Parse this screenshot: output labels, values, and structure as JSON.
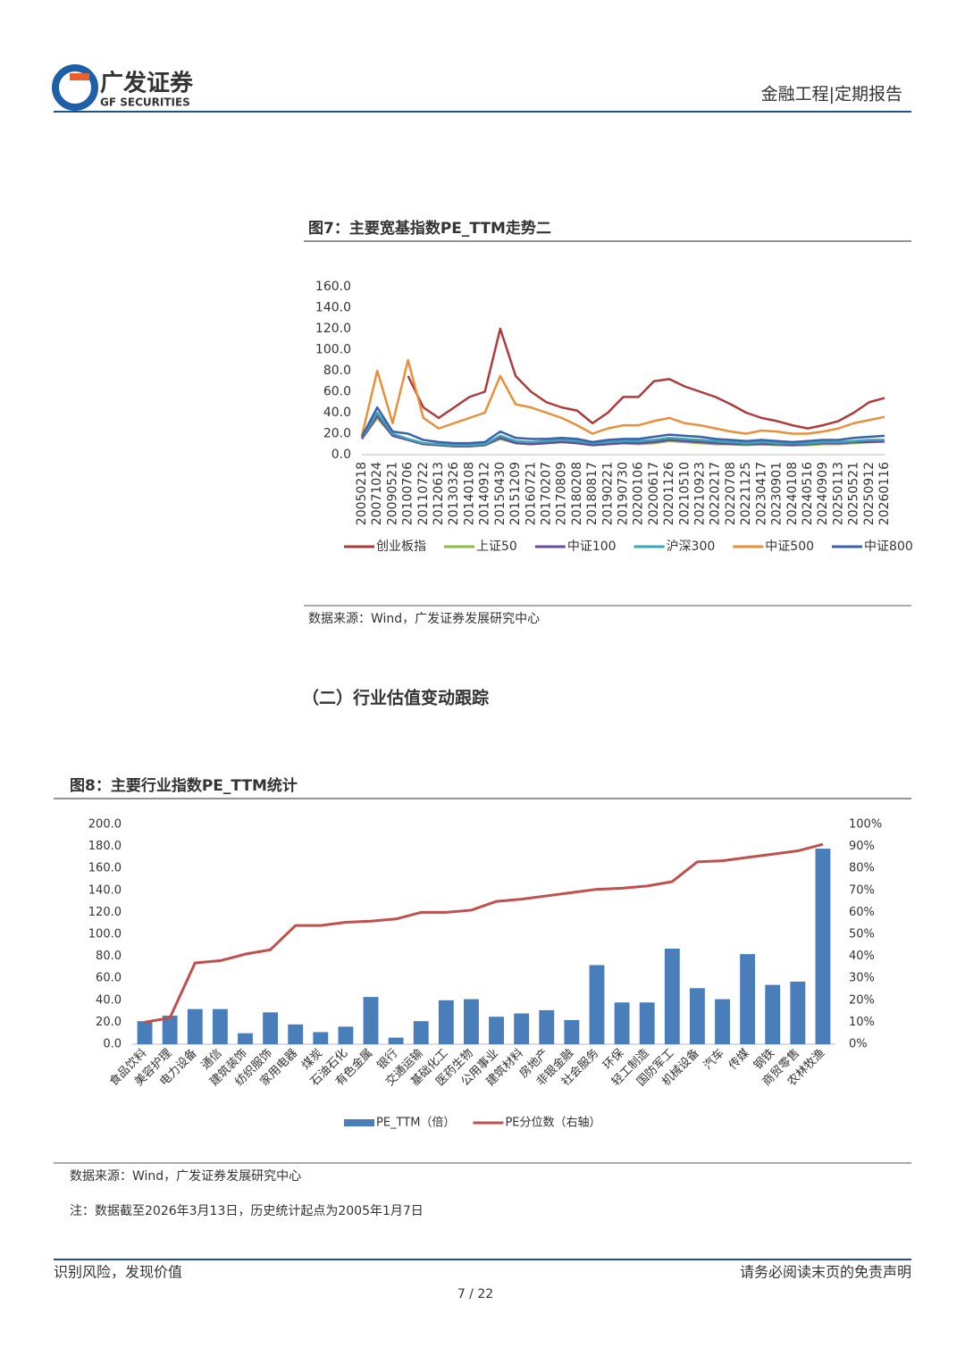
{
  "header": {
    "logo_cn": "广发证券",
    "logo_en": "GF SECURITIES",
    "report_type": "金融工程|定期报告"
  },
  "figures": [
    {
      "title": "图7：主要宽基指数PE_TTM走势二",
      "source": "数据来源：Wind，广发证券发展研究中心"
    },
    {
      "title": "图8：主要行业指数PE_TTM统计",
      "source": "数据来源：Wind，广发证券发展研究中心",
      "note": "注：数据截至2026年3月13日，历史统计起点为2005年1月7日"
    }
  ],
  "section_heading": "（二）行业估值变动跟踪",
  "footer": {
    "left": "识别风险，发现价值",
    "right": "请务必阅读末页的免责声明",
    "page": "7 / 22"
  },
  "chart_data": [
    {
      "type": "line",
      "categories": [
        "20050218",
        "20071024",
        "20090521",
        "20100706",
        "20110722",
        "20120613",
        "20130326",
        "20140108",
        "20140912",
        "20150430",
        "20151209",
        "20160721",
        "20170207",
        "20170809",
        "20180208",
        "20180817",
        "20190221",
        "20190730",
        "20200106",
        "20200617",
        "20201126",
        "20210510",
        "20210923",
        "20220217",
        "20220708",
        "20221125",
        "20230417",
        "20230901",
        "20240108",
        "20240516",
        "20240909",
        "20250113",
        "20250521",
        "20250912",
        "20260116"
      ],
      "ylim": [
        0,
        160
      ],
      "yticks": [
        {
          "value": 0,
          "label": "0.0"
        },
        {
          "value": 20,
          "label": "20.0"
        },
        {
          "value": 40,
          "label": "40.0"
        },
        {
          "value": 60,
          "label": "60.0"
        },
        {
          "value": 80,
          "label": "80.0"
        },
        {
          "value": 100,
          "label": "100.0"
        },
        {
          "value": 120,
          "label": "120.0"
        },
        {
          "value": 140,
          "label": "140.0"
        },
        {
          "value": 160,
          "label": "160.0"
        }
      ],
      "series": [
        {
          "name": "创业板指",
          "color": "#b03a3a",
          "values": [
            null,
            null,
            null,
            75,
            45,
            35,
            45,
            55,
            60,
            120,
            75,
            60,
            50,
            45,
            42,
            30,
            40,
            55,
            55,
            70,
            72,
            65,
            60,
            55,
            48,
            40,
            35,
            32,
            28,
            25,
            28,
            32,
            40,
            50,
            54
          ]
        },
        {
          "name": "上证50",
          "color": "#8cba4a",
          "values": [
            15,
            35,
            18,
            14,
            10,
            9,
            8,
            8,
            9,
            15,
            11,
            10,
            11,
            12,
            11,
            9,
            10,
            11,
            10,
            11,
            13,
            12,
            11,
            10,
            10,
            9,
            10,
            9,
            9,
            9,
            10,
            10,
            11,
            12,
            12
          ]
        },
        {
          "name": "中证100",
          "color": "#6a4c9c",
          "values": [
            15,
            37,
            18,
            14,
            10,
            9,
            8,
            8,
            9,
            16,
            11,
            10,
            11,
            12,
            11,
            9,
            10,
            11,
            11,
            12,
            14,
            13,
            12,
            11,
            10,
            10,
            10,
            10,
            9,
            10,
            11,
            11,
            12,
            12,
            13
          ]
        },
        {
          "name": "沪深300",
          "color": "#3aa6b9",
          "values": [
            16,
            40,
            20,
            15,
            11,
            10,
            9,
            9,
            10,
            18,
            13,
            12,
            13,
            14,
            13,
            11,
            12,
            13,
            13,
            14,
            16,
            15,
            14,
            13,
            12,
            11,
            12,
            11,
            11,
            11,
            12,
            12,
            13,
            14,
            14
          ]
        },
        {
          "name": "中证500",
          "color": "#e8903a",
          "values": [
            18,
            80,
            30,
            90,
            35,
            25,
            30,
            35,
            40,
            75,
            48,
            45,
            40,
            35,
            28,
            20,
            25,
            28,
            28,
            32,
            35,
            30,
            28,
            25,
            22,
            20,
            23,
            22,
            20,
            20,
            22,
            25,
            30,
            33,
            36
          ]
        },
        {
          "name": "中证800",
          "color": "#3a62a8",
          "values": [
            17,
            45,
            22,
            20,
            14,
            12,
            11,
            11,
            12,
            22,
            16,
            15,
            15,
            16,
            15,
            12,
            14,
            15,
            15,
            17,
            19,
            18,
            17,
            15,
            14,
            13,
            14,
            13,
            12,
            13,
            14,
            14,
            16,
            17,
            18
          ]
        }
      ]
    },
    {
      "type": "bar",
      "categories": [
        "食品饮料",
        "美容护理",
        "电力设备",
        "通信",
        "建筑装饰",
        "纺织服饰",
        "家用电器",
        "煤炭",
        "石油石化",
        "有色金属",
        "银行",
        "交通运输",
        "基础化工",
        "医药生物",
        "公用事业",
        "建筑材料",
        "房地产",
        "非银金融",
        "社会服务",
        "环保",
        "轻工制造",
        "国防军工",
        "机械设备",
        "汽车",
        "传媒",
        "钢铁",
        "商贸零售",
        "农林牧渔"
      ],
      "ylim": [
        0,
        200
      ],
      "yticks": [
        {
          "value": 0,
          "label": "0.0"
        },
        {
          "value": 20,
          "label": "20.0"
        },
        {
          "value": 40,
          "label": "40.0"
        },
        {
          "value": 60,
          "label": "60.0"
        },
        {
          "value": 80,
          "label": "80.0"
        },
        {
          "value": 100,
          "label": "100.0"
        },
        {
          "value": 120,
          "label": "120.0"
        },
        {
          "value": 140,
          "label": "140.0"
        },
        {
          "value": 160,
          "label": "160.0"
        },
        {
          "value": 180,
          "label": "180.0"
        },
        {
          "value": 200,
          "label": "200.0"
        }
      ],
      "y2lim": [
        0,
        100
      ],
      "y2ticks": [
        {
          "value": 0,
          "label": "0%"
        },
        {
          "value": 10,
          "label": "10%"
        },
        {
          "value": 20,
          "label": "20%"
        },
        {
          "value": 30,
          "label": "30%"
        },
        {
          "value": 40,
          "label": "40%"
        },
        {
          "value": 50,
          "label": "50%"
        },
        {
          "value": 60,
          "label": "60%"
        },
        {
          "value": 70,
          "label": "70%"
        },
        {
          "value": 80,
          "label": "80%"
        },
        {
          "value": 90,
          "label": "90%"
        },
        {
          "value": 100,
          "label": "100%"
        }
      ],
      "series": [
        {
          "name": "PE_TTM（倍）",
          "type": "bar",
          "color": "#4a7ebb",
          "values": [
            21,
            26,
            32,
            32,
            10,
            29,
            18,
            11,
            16,
            43,
            6,
            21,
            40,
            41,
            25,
            28,
            31,
            22,
            72,
            38,
            38,
            87,
            51,
            41,
            82,
            54,
            57,
            178
          ]
        },
        {
          "name": "PE分位数（右轴）",
          "type": "line",
          "axis": "y2",
          "color": "#c0504d",
          "values": [
            10,
            12,
            37,
            38,
            41,
            43,
            54,
            54,
            55.5,
            56,
            57,
            60,
            60,
            61,
            65,
            66,
            67.5,
            69,
            70.5,
            71,
            72,
            74,
            83,
            83.5,
            85,
            86.5,
            88,
            91
          ]
        }
      ]
    }
  ]
}
